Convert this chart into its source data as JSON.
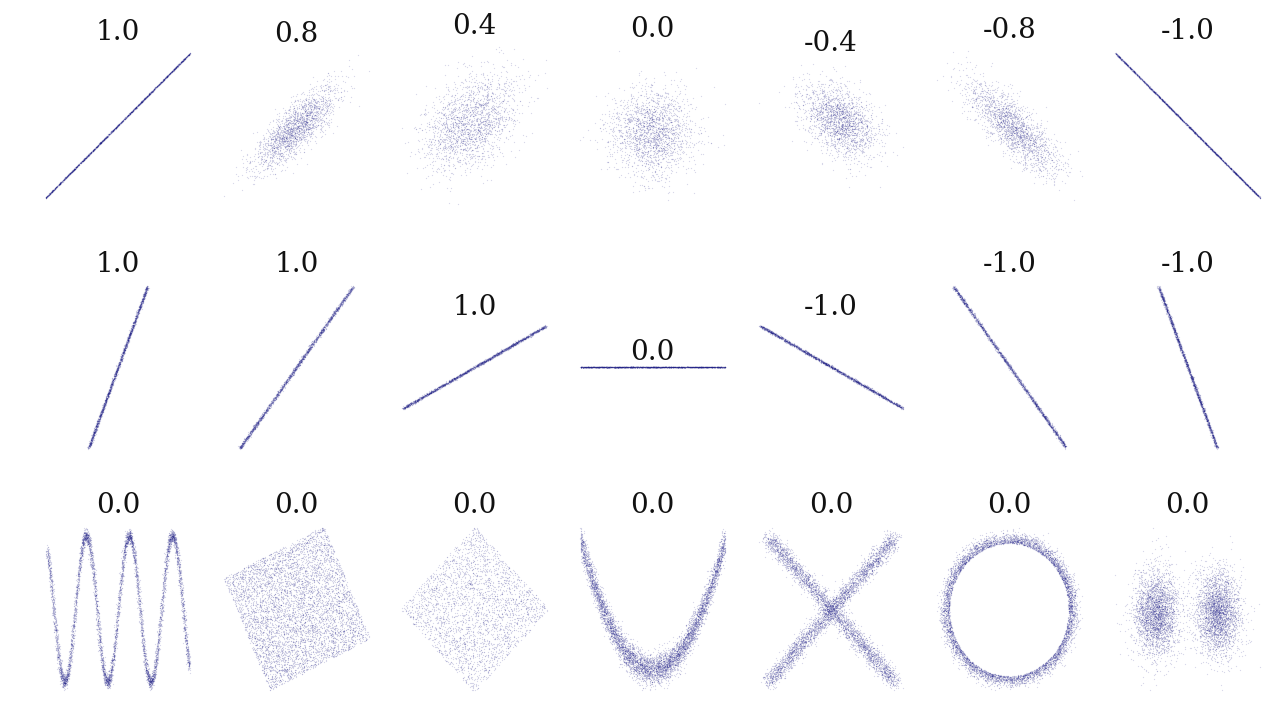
{
  "background_color": "#ffffff",
  "dot_color": "#22228a",
  "dot_alpha": 0.18,
  "dot_size": 0.8,
  "n_points": 2000,
  "row1_labels": [
    "1.0",
    "0.8",
    "0.4",
    "0.0",
    "-0.4",
    "-0.8",
    "-1.0"
  ],
  "row1_correlations": [
    1.0,
    0.8,
    0.4,
    0.0,
    -0.4,
    -0.8,
    -1.0
  ],
  "row2_labels": [
    "1.0",
    "1.0",
    "1.0",
    "0.0",
    "-1.0",
    "-1.0",
    "-1.0"
  ],
  "row3_labels": [
    "0.0",
    "0.0",
    "0.0",
    "0.0",
    "0.0",
    "0.0",
    "0.0"
  ],
  "label_fontsize": 20,
  "title_color": "#111111"
}
